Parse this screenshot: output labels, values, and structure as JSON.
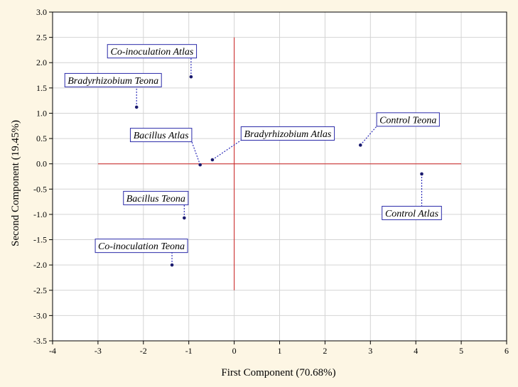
{
  "chart_data": {
    "type": "scatter",
    "title": "",
    "xlabel": "First Component (70.68%)",
    "ylabel": "Second Component (19.45%)",
    "xlim": [
      -4,
      6
    ],
    "ylim": [
      -3.5,
      3.0
    ],
    "x_ticks": [
      "-4",
      "-3",
      "-2",
      "-1",
      "0",
      "1",
      "2",
      "3",
      "4",
      "5",
      "6"
    ],
    "y_ticks": [
      "3.0",
      "2.5",
      "2.0",
      "1.5",
      "1.0",
      "0.5",
      "0.0",
      "-0.5",
      "-1.0",
      "-1.5",
      "-2.0",
      "-2.5",
      "-3.0",
      "-3.5"
    ],
    "grid": true,
    "reference_lines": {
      "horizontal": {
        "y": 0,
        "x_from": -3,
        "x_to": 5
      },
      "vertical": {
        "x": 0,
        "y_from": -2.5,
        "y_to": 2.5
      },
      "color": "#cc2222"
    },
    "colors": {
      "background": "#fdf6e4",
      "plot_area": "#ffffff",
      "grid": "#d4d4d4",
      "marker": "#1a1a6e",
      "label_box_border": "#2a2aa8",
      "label_leader": "#2a2ab8"
    },
    "points": [
      {
        "label": "Co-inoculation Atlas",
        "x": -0.95,
        "y": 1.72
      },
      {
        "label": "Bradyrhizobium Teona",
        "x": -2.15,
        "y": 1.12
      },
      {
        "label": "Bacillus Atlas",
        "x": -0.75,
        "y": -0.02
      },
      {
        "label": "Bradyrhizobium Atlas",
        "x": -0.48,
        "y": 0.08
      },
      {
        "label": "Control Teona",
        "x": 2.78,
        "y": 0.37
      },
      {
        "label": "Control Atlas",
        "x": 4.13,
        "y": -0.2
      },
      {
        "label": "Bacillus Teona",
        "x": -1.1,
        "y": -1.07
      },
      {
        "label": "Co-inoculation Teona",
        "x": -1.37,
        "y": -2.0
      }
    ]
  }
}
